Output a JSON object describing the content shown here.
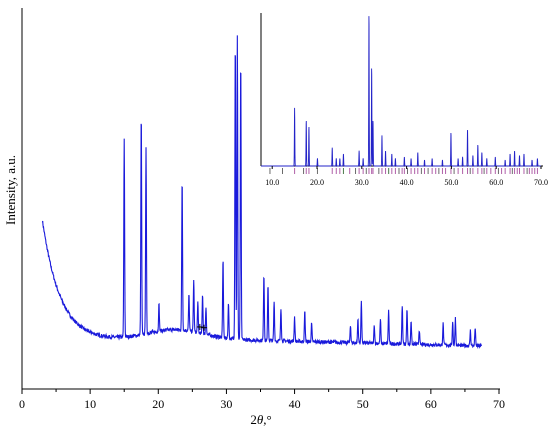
{
  "chart_data": [
    {
      "type": "line",
      "xlabel_prefix": "2",
      "xlabel_theta": "θ",
      "xlabel_suffix": ",°",
      "ylabel": "Intensity, a.u.",
      "xlim": [
        0,
        70
      ],
      "x_ticks": [
        0,
        10,
        20,
        30,
        40,
        50,
        60,
        70
      ],
      "y_ticks_labeled": false,
      "series_color": "#1a1adb",
      "background": {
        "x0": 3,
        "y0": 0.44,
        "decay": 2.6,
        "base": 0.045,
        "bump_center": 22.5,
        "bump_height": 0.035,
        "bump_width": 6
      },
      "peaks": [
        {
          "x": 15.0,
          "y": 0.65
        },
        {
          "x": 17.5,
          "y": 0.73
        },
        {
          "x": 18.2,
          "y": 0.61
        },
        {
          "x": 20.1,
          "y": 0.09
        },
        {
          "x": 23.5,
          "y": 0.5
        },
        {
          "x": 24.5,
          "y": 0.12
        },
        {
          "x": 25.2,
          "y": 0.17
        },
        {
          "x": 25.8,
          "y": 0.1
        },
        {
          "x": 26.5,
          "y": 0.13
        },
        {
          "x": 27.0,
          "y": 0.09
        },
        {
          "x": 29.5,
          "y": 0.26
        },
        {
          "x": 30.3,
          "y": 0.12
        },
        {
          "x": 31.3,
          "y": 0.99
        },
        {
          "x": 31.6,
          "y": 1.0
        },
        {
          "x": 32.1,
          "y": 0.93
        },
        {
          "x": 35.5,
          "y": 0.22
        },
        {
          "x": 36.1,
          "y": 0.18
        },
        {
          "x": 37.0,
          "y": 0.13
        },
        {
          "x": 38.0,
          "y": 0.11
        },
        {
          "x": 40.0,
          "y": 0.08
        },
        {
          "x": 41.5,
          "y": 0.1
        },
        {
          "x": 42.5,
          "y": 0.06
        },
        {
          "x": 48.2,
          "y": 0.06
        },
        {
          "x": 49.3,
          "y": 0.08
        },
        {
          "x": 49.8,
          "y": 0.14
        },
        {
          "x": 51.7,
          "y": 0.06
        },
        {
          "x": 52.6,
          "y": 0.08
        },
        {
          "x": 53.8,
          "y": 0.11
        },
        {
          "x": 55.8,
          "y": 0.13
        },
        {
          "x": 56.5,
          "y": 0.12
        },
        {
          "x": 57.1,
          "y": 0.08
        },
        {
          "x": 58.3,
          "y": 0.05
        },
        {
          "x": 61.8,
          "y": 0.07
        },
        {
          "x": 63.2,
          "y": 0.08
        },
        {
          "x": 63.6,
          "y": 0.09
        },
        {
          "x": 65.8,
          "y": 0.05
        },
        {
          "x": 66.5,
          "y": 0.06
        }
      ],
      "markers": [
        {
          "x": 26.1,
          "symbol": "+"
        },
        {
          "x": 26.7,
          "symbol": "+"
        }
      ]
    },
    {
      "type": "line",
      "title": "",
      "xlim": [
        7.5,
        70
      ],
      "x_ticks": [
        10,
        20,
        30,
        40,
        50,
        60,
        70
      ],
      "x_tick_labels": [
        "10.0",
        "20.0",
        "30.0",
        "40.0",
        "50.0",
        "60.0",
        "70.0"
      ],
      "series_color": "#2323c8",
      "peaks": [
        {
          "x": 15.0,
          "y": 0.38
        },
        {
          "x": 17.6,
          "y": 0.3
        },
        {
          "x": 18.2,
          "y": 0.26
        },
        {
          "x": 20.1,
          "y": 0.05
        },
        {
          "x": 23.4,
          "y": 0.12
        },
        {
          "x": 24.3,
          "y": 0.05
        },
        {
          "x": 25.1,
          "y": 0.05
        },
        {
          "x": 25.9,
          "y": 0.08
        },
        {
          "x": 29.4,
          "y": 0.1
        },
        {
          "x": 30.3,
          "y": 0.05
        },
        {
          "x": 31.6,
          "y": 1.0
        },
        {
          "x": 32.2,
          "y": 0.65
        },
        {
          "x": 32.5,
          "y": 0.3
        },
        {
          "x": 34.5,
          "y": 0.2
        },
        {
          "x": 35.3,
          "y": 0.1
        },
        {
          "x": 36.7,
          "y": 0.08
        },
        {
          "x": 37.5,
          "y": 0.05
        },
        {
          "x": 39.5,
          "y": 0.06
        },
        {
          "x": 41.0,
          "y": 0.05
        },
        {
          "x": 42.5,
          "y": 0.09
        },
        {
          "x": 44.0,
          "y": 0.04
        },
        {
          "x": 45.7,
          "y": 0.05
        },
        {
          "x": 48.0,
          "y": 0.04
        },
        {
          "x": 49.9,
          "y": 0.22
        },
        {
          "x": 51.5,
          "y": 0.05
        },
        {
          "x": 52.5,
          "y": 0.06
        },
        {
          "x": 53.6,
          "y": 0.24
        },
        {
          "x": 54.8,
          "y": 0.07
        },
        {
          "x": 55.9,
          "y": 0.14
        },
        {
          "x": 56.8,
          "y": 0.09
        },
        {
          "x": 57.9,
          "y": 0.05
        },
        {
          "x": 59.8,
          "y": 0.06
        },
        {
          "x": 62.0,
          "y": 0.04
        },
        {
          "x": 63.1,
          "y": 0.08
        },
        {
          "x": 64.1,
          "y": 0.1
        },
        {
          "x": 65.2,
          "y": 0.07
        },
        {
          "x": 66.2,
          "y": 0.08
        },
        {
          "x": 68.0,
          "y": 0.04
        },
        {
          "x": 69.2,
          "y": 0.05
        }
      ],
      "reference_marks": [
        {
          "x": 9.5,
          "color": "#6a6a6a"
        },
        {
          "x": 12.3,
          "color": "#6a6a6a"
        },
        {
          "x": 15.0,
          "color": "#b05fa8"
        },
        {
          "x": 17.0,
          "color": "#6a6a6a"
        },
        {
          "x": 17.6,
          "color": "#b05fa8"
        },
        {
          "x": 18.2,
          "color": "#b05fa8"
        },
        {
          "x": 20.1,
          "color": "#6a6a6a"
        },
        {
          "x": 23.4,
          "color": "#b05fa8"
        },
        {
          "x": 24.3,
          "color": "#b05fa8"
        },
        {
          "x": 25.1,
          "color": "#b05fa8"
        },
        {
          "x": 25.9,
          "color": "#4a7a4a"
        },
        {
          "x": 27.3,
          "color": "#b05fa8"
        },
        {
          "x": 28.6,
          "color": "#6a6a6a"
        },
        {
          "x": 29.4,
          "color": "#b05fa8"
        },
        {
          "x": 30.3,
          "color": "#b05fa8"
        },
        {
          "x": 31.0,
          "color": "#6a6a6a"
        },
        {
          "x": 31.6,
          "color": "#b05fa8"
        },
        {
          "x": 32.2,
          "color": "#b05fa8"
        },
        {
          "x": 32.5,
          "color": "#b05fa8"
        },
        {
          "x": 33.8,
          "color": "#6a6a6a"
        },
        {
          "x": 34.5,
          "color": "#b05fa8"
        },
        {
          "x": 35.3,
          "color": "#b05fa8"
        },
        {
          "x": 36.0,
          "color": "#4a7a4a"
        },
        {
          "x": 36.7,
          "color": "#b05fa8"
        },
        {
          "x": 37.5,
          "color": "#b05fa8"
        },
        {
          "x": 38.3,
          "color": "#6a6a6a"
        },
        {
          "x": 39.0,
          "color": "#b05fa8"
        },
        {
          "x": 39.5,
          "color": "#b05fa8"
        },
        {
          "x": 40.2,
          "color": "#6a6a6a"
        },
        {
          "x": 41.0,
          "color": "#b05fa8"
        },
        {
          "x": 41.8,
          "color": "#b05fa8"
        },
        {
          "x": 42.5,
          "color": "#b05fa8"
        },
        {
          "x": 43.3,
          "color": "#6a6a6a"
        },
        {
          "x": 44.0,
          "color": "#b05fa8"
        },
        {
          "x": 44.8,
          "color": "#6a6a6a"
        },
        {
          "x": 45.7,
          "color": "#b05fa8"
        },
        {
          "x": 46.5,
          "color": "#b05fa8"
        },
        {
          "x": 47.2,
          "color": "#6a6a6a"
        },
        {
          "x": 48.0,
          "color": "#b05fa8"
        },
        {
          "x": 48.7,
          "color": "#b05fa8"
        },
        {
          "x": 49.9,
          "color": "#b05fa8"
        },
        {
          "x": 50.6,
          "color": "#6a6a6a"
        },
        {
          "x": 51.5,
          "color": "#b05fa8"
        },
        {
          "x": 52.5,
          "color": "#b05fa8"
        },
        {
          "x": 53.6,
          "color": "#b05fa8"
        },
        {
          "x": 54.2,
          "color": "#6a6a6a"
        },
        {
          "x": 54.8,
          "color": "#b05fa8"
        },
        {
          "x": 55.9,
          "color": "#b05fa8"
        },
        {
          "x": 56.8,
          "color": "#b05fa8"
        },
        {
          "x": 57.3,
          "color": "#6a6a6a"
        },
        {
          "x": 57.9,
          "color": "#b05fa8"
        },
        {
          "x": 58.8,
          "color": "#b05fa8"
        },
        {
          "x": 59.8,
          "color": "#b05fa8"
        },
        {
          "x": 60.5,
          "color": "#6a6a6a"
        },
        {
          "x": 61.2,
          "color": "#b05fa8"
        },
        {
          "x": 62.0,
          "color": "#b05fa8"
        },
        {
          "x": 63.1,
          "color": "#b05fa8"
        },
        {
          "x": 63.6,
          "color": "#6a6a6a"
        },
        {
          "x": 64.1,
          "color": "#b05fa8"
        },
        {
          "x": 64.7,
          "color": "#b05fa8"
        },
        {
          "x": 65.2,
          "color": "#b05fa8"
        },
        {
          "x": 66.2,
          "color": "#b05fa8"
        },
        {
          "x": 66.9,
          "color": "#6a6a6a"
        },
        {
          "x": 67.4,
          "color": "#b05fa8"
        },
        {
          "x": 68.0,
          "color": "#b05fa8"
        },
        {
          "x": 68.6,
          "color": "#b05fa8"
        },
        {
          "x": 69.2,
          "color": "#b05fa8"
        }
      ]
    }
  ]
}
